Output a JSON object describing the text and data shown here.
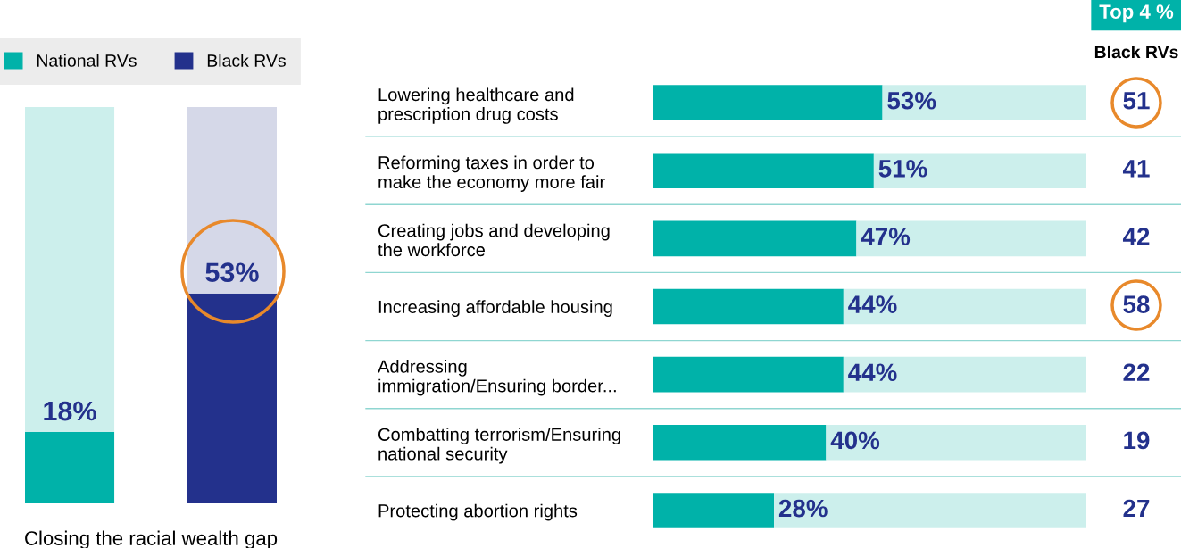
{
  "chart_data": [
    {
      "type": "bar",
      "categories": [
        null,
        null
      ],
      "stacked": true,
      "tick_labels": false,
      "legend": "top",
      "xlabel": "Closing the racial wealth gap",
      "series": [
        {
          "name": "National RVs",
          "color": "#00b2a9",
          "values": [
            18,
            null
          ],
          "value_labels": [
            "18%",
            null
          ]
        },
        {
          "name": "Black RVs",
          "color": "#23318c",
          "values": [
            null,
            53
          ],
          "value_labels": [
            null,
            "53%"
          ]
        },
        {
          "color": "#ccefec",
          "values": [
            82,
            null
          ]
        },
        {
          "color": "#d5d8e8",
          "values": [
            null,
            47
          ]
        }
      ]
    },
    {
      "type": "bar",
      "orientation": "horizontal",
      "stacked": true,
      "tick_labels": "y",
      "categories": [
        "Lowering healthcare and\nprescription drug costs",
        "Reforming taxes in order to\nmake the economy more fair",
        "Creating jobs and developing\nthe workforce",
        "Increasing affordable housing",
        "Addressing\nimmigration/Ensuring border...",
        "Combatting terrorism/Ensuring\nnational security",
        "Protecting abortion rights"
      ],
      "series": [
        {
          "color": "#00b2a9",
          "values": [
            53,
            51,
            47,
            44,
            44,
            40,
            28
          ],
          "value_labels": [
            "53%",
            "51%",
            "47%",
            "44%",
            "44%",
            "40%",
            "28%"
          ]
        },
        {
          "color": "#ccefec",
          "values": [
            47,
            49,
            53,
            56,
            56,
            60,
            72
          ]
        }
      ],
      "annotations": [
        "Top 4 %",
        "Black RVs",
        "51",
        "41",
        "42",
        "58",
        "22",
        "19",
        "27"
      ]
    }
  ]
}
